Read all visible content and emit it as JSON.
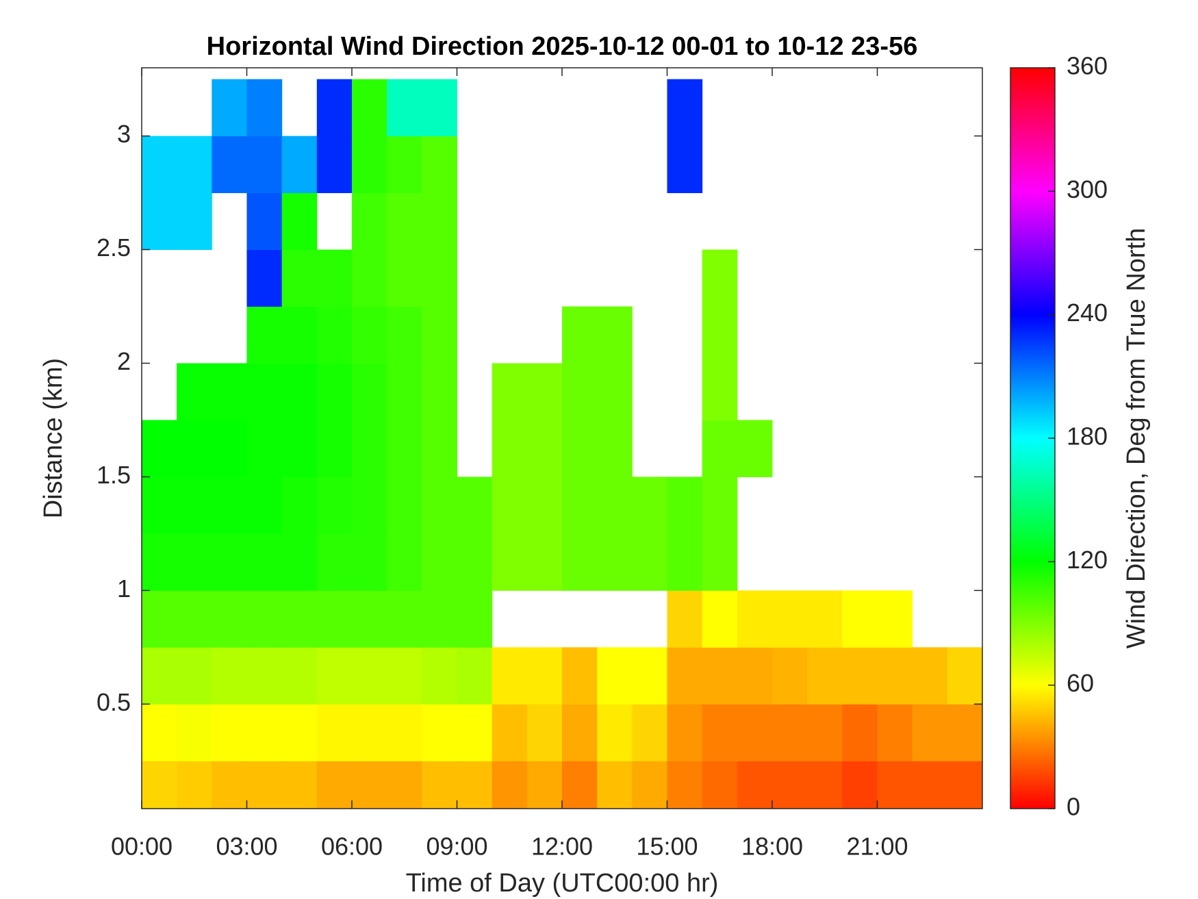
{
  "chart_data": {
    "type": "heatmap",
    "title": "Horizontal Wind Direction 2025-10-12 00-01 to 10-12 23-56",
    "x_label": "Time of Day (UTC00:00 hr)",
    "y_label": "Distance (km)",
    "colorbar_label": "Wind Direction, Deg from True North",
    "colormap": "hsv",
    "x": [
      0,
      1,
      2,
      3,
      4,
      5,
      6,
      7,
      8,
      9,
      10,
      11,
      12,
      13,
      14,
      15,
      16,
      17,
      18,
      19,
      20,
      21,
      22,
      23
    ],
    "x_step": 1,
    "y": [
      0,
      0.25,
      0.5,
      0.75,
      1,
      1.25,
      1.5,
      1.75,
      2,
      2.25,
      2.5,
      2.75,
      3
    ],
    "y_step": 0.25,
    "values": [
      [
        50,
        48,
        45,
        45,
        45,
        40,
        40,
        40,
        45,
        45,
        35,
        40,
        30,
        45,
        40,
        30,
        25,
        20,
        20,
        20,
        15,
        20,
        20,
        20
      ],
      [
        60,
        62,
        60,
        60,
        60,
        58,
        58,
        58,
        60,
        60,
        45,
        50,
        40,
        55,
        50,
        35,
        30,
        30,
        30,
        30,
        25,
        30,
        35,
        35
      ],
      [
        80,
        80,
        78,
        78,
        78,
        75,
        75,
        75,
        78,
        80,
        55,
        55,
        45,
        60,
        60,
        40,
        40,
        40,
        42,
        45,
        45,
        45,
        45,
        50
      ],
      [
        100,
        100,
        100,
        100,
        100,
        100,
        100,
        100,
        100,
        100,
        null,
        null,
        null,
        null,
        null,
        50,
        60,
        55,
        55,
        55,
        60,
        60,
        null,
        null
      ],
      [
        115,
        115,
        115,
        115,
        115,
        110,
        110,
        105,
        100,
        100,
        90,
        90,
        95,
        95,
        95,
        100,
        95,
        null,
        null,
        null,
        null,
        null,
        null,
        null
      ],
      [
        118,
        118,
        118,
        118,
        115,
        112,
        110,
        105,
        100,
        100,
        90,
        90,
        95,
        95,
        95,
        100,
        95,
        null,
        null,
        null,
        null,
        null,
        null,
        null
      ],
      [
        120,
        120,
        120,
        118,
        118,
        115,
        110,
        105,
        100,
        null,
        90,
        90,
        95,
        95,
        null,
        null,
        95,
        95,
        null,
        null,
        null,
        null,
        null,
        null
      ],
      [
        null,
        118,
        118,
        118,
        118,
        115,
        110,
        105,
        100,
        null,
        90,
        90,
        95,
        95,
        null,
        null,
        90,
        null,
        null,
        null,
        null,
        null,
        null,
        null
      ],
      [
        null,
        null,
        null,
        115,
        115,
        112,
        108,
        105,
        100,
        null,
        null,
        null,
        95,
        95,
        null,
        null,
        90,
        null,
        null,
        null,
        null,
        null,
        null,
        null
      ],
      [
        null,
        null,
        null,
        230,
        110,
        110,
        105,
        100,
        100,
        null,
        null,
        null,
        null,
        null,
        null,
        null,
        90,
        null,
        null,
        null,
        null,
        null,
        null,
        null
      ],
      [
        190,
        190,
        null,
        220,
        115,
        null,
        105,
        100,
        100,
        null,
        null,
        null,
        null,
        null,
        null,
        null,
        null,
        null,
        null,
        null,
        null,
        null,
        null,
        null
      ],
      [
        190,
        190,
        215,
        215,
        200,
        230,
        110,
        105,
        100,
        null,
        null,
        null,
        null,
        null,
        null,
        230,
        null,
        null,
        null,
        null,
        null,
        null,
        null,
        null
      ],
      [
        null,
        null,
        200,
        210,
        null,
        230,
        110,
        165,
        165,
        null,
        null,
        null,
        null,
        null,
        null,
        230,
        null,
        null,
        null,
        null,
        null,
        null,
        null,
        null
      ]
    ],
    "xlim": [
      0,
      24
    ],
    "xticks": [
      {
        "value": 0,
        "label": "00:00"
      },
      {
        "value": 3,
        "label": "03:00"
      },
      {
        "value": 6,
        "label": "06:00"
      },
      {
        "value": 9,
        "label": "09:00"
      },
      {
        "value": 12,
        "label": "12:00"
      },
      {
        "value": 15,
        "label": "15:00"
      },
      {
        "value": 18,
        "label": "18:00"
      },
      {
        "value": 21,
        "label": "21:00"
      }
    ],
    "ylim": [
      0.04,
      3.3
    ],
    "yticks": [
      0.5,
      1,
      1.5,
      2,
      2.5,
      3
    ],
    "zlim": [
      0,
      360
    ],
    "zticks": [
      0,
      60,
      120,
      180,
      240,
      300,
      360
    ]
  }
}
